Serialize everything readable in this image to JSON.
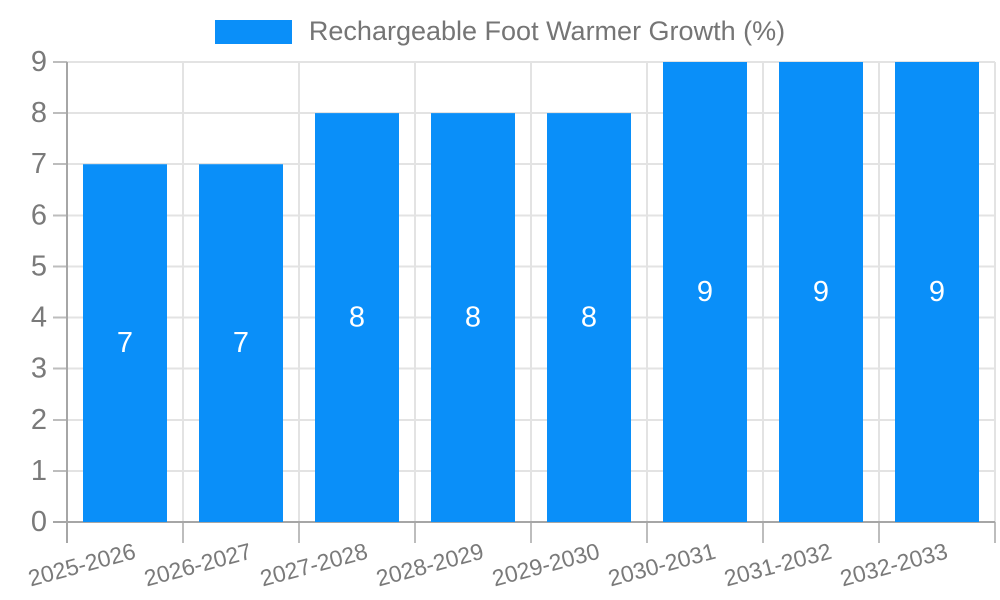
{
  "chart_data": {
    "type": "bar",
    "title": "Rechargeable Foot Warmer Growth (%)",
    "categories": [
      "2025-2026",
      "2026-2027",
      "2027-2028",
      "2028-2029",
      "2029-2030",
      "2030-2031",
      "2031-2032",
      "2032-2033"
    ],
    "series": [
      {
        "name": "Rechargeable Foot Warmer Growth (%)",
        "values": [
          7,
          7,
          8,
          8,
          8,
          9,
          9,
          9
        ]
      }
    ],
    "xlabel": "",
    "ylabel": "",
    "ylim": [
      0,
      9
    ],
    "ytick_step": 1,
    "yticks": [
      0,
      1,
      2,
      3,
      4,
      5,
      6,
      7,
      8,
      9
    ],
    "grid": true,
    "legend_position": "top",
    "bar_value_labels": true,
    "x_label_rotation_deg": -15,
    "colors": {
      "bar": "#0a8ff9",
      "grid": "#e3e3e3",
      "axis": "#a6a6a6",
      "tick_mark": "#bdbdbd",
      "tick_text": "#7a7a7a",
      "legend_text": "#757575",
      "bar_label_text": "#ffffff",
      "background": "#ffffff"
    }
  }
}
